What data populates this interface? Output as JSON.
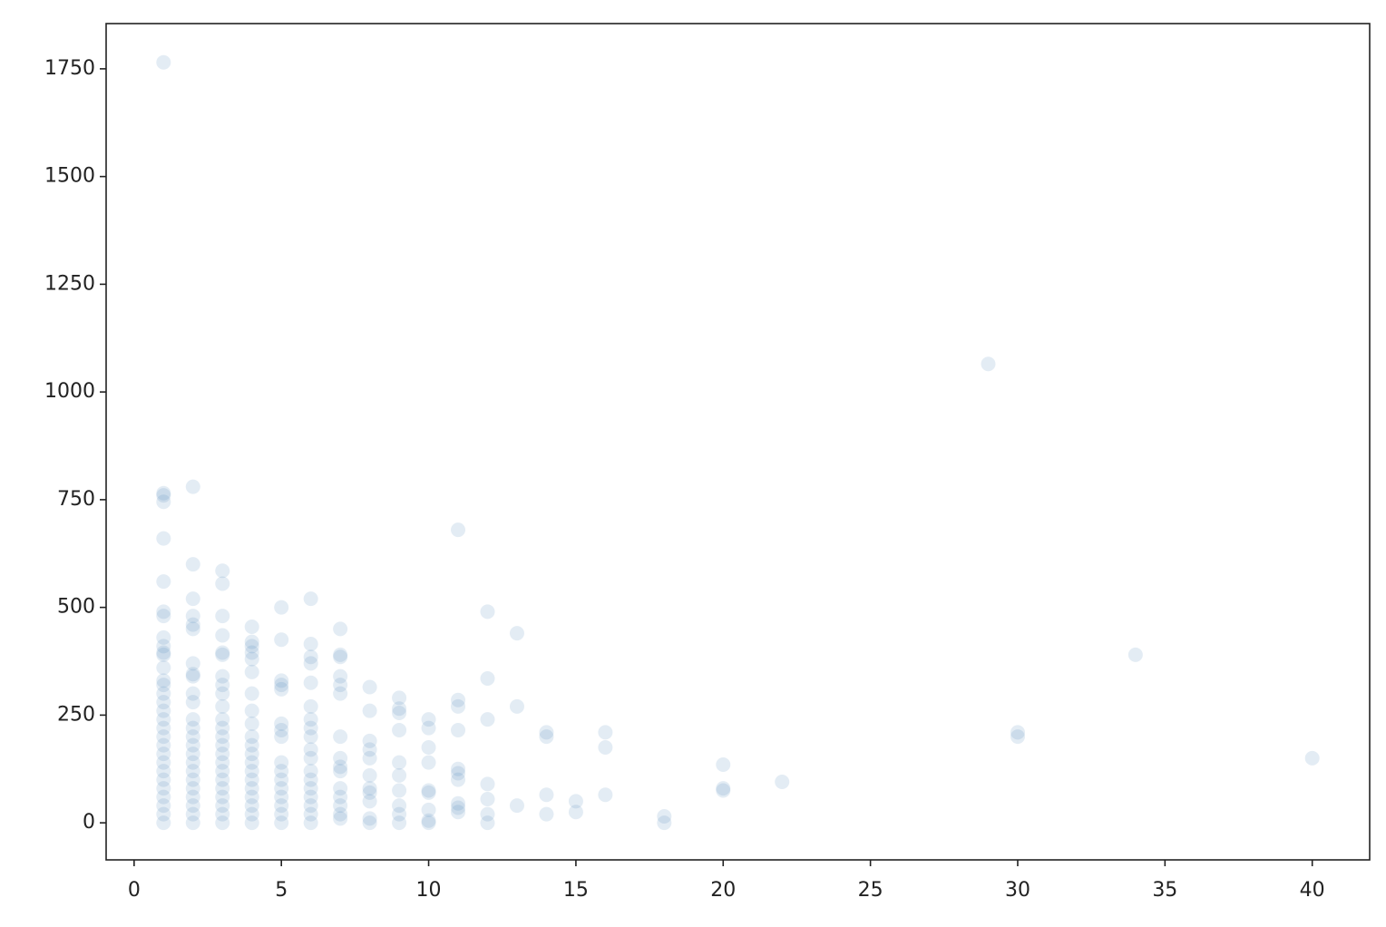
{
  "chart_data": {
    "type": "scatter",
    "color": "#4682b4",
    "alpha": 0.15,
    "grid": false,
    "xlim": [
      -0.95,
      41.95
    ],
    "ylim": [
      -86,
      1855
    ],
    "xticks": [
      0,
      5,
      10,
      15,
      20,
      25,
      30,
      35,
      40
    ],
    "yticks": [
      0,
      250,
      500,
      750,
      1000,
      1250,
      1500,
      1750
    ],
    "x": [
      1,
      1,
      1,
      1,
      1,
      1,
      1,
      1,
      1,
      1,
      1,
      1,
      1,
      1,
      1,
      1,
      1,
      1,
      1,
      1,
      1,
      1,
      1,
      1,
      1,
      1,
      1,
      1,
      1,
      1,
      1,
      2,
      2,
      2,
      2,
      2,
      2,
      2,
      2,
      2,
      2,
      2,
      2,
      2,
      2,
      2,
      2,
      2,
      2,
      2,
      2,
      2,
      2,
      2,
      2,
      3,
      3,
      3,
      3,
      3,
      3,
      3,
      3,
      3,
      3,
      3,
      3,
      3,
      3,
      3,
      3,
      3,
      3,
      3,
      3,
      3,
      3,
      3,
      4,
      4,
      4,
      4,
      4,
      4,
      4,
      4,
      4,
      4,
      4,
      4,
      4,
      4,
      4,
      4,
      4,
      4,
      4,
      4,
      5,
      5,
      5,
      5,
      5,
      5,
      5,
      5,
      5,
      5,
      5,
      5,
      5,
      5,
      5,
      5,
      6,
      6,
      6,
      6,
      6,
      6,
      6,
      6,
      6,
      6,
      6,
      6,
      6,
      6,
      6,
      6,
      6,
      6,
      7,
      7,
      7,
      7,
      7,
      7,
      7,
      7,
      7,
      7,
      7,
      7,
      7,
      7,
      7,
      8,
      8,
      8,
      8,
      8,
      8,
      8,
      8,
      8,
      8,
      8,
      9,
      9,
      9,
      9,
      9,
      9,
      9,
      9,
      9,
      9,
      10,
      10,
      10,
      10,
      10,
      10,
      10,
      10,
      10,
      11,
      11,
      11,
      11,
      11,
      11,
      11,
      11,
      11,
      11,
      12,
      12,
      12,
      12,
      12,
      12,
      12,
      13,
      13,
      13,
      14,
      14,
      14,
      14,
      15,
      15,
      16,
      16,
      16,
      18,
      18,
      20,
      20,
      20,
      22,
      29,
      30,
      30,
      34,
      40
    ],
    "values": [
      0,
      20,
      40,
      60,
      80,
      100,
      120,
      140,
      160,
      180,
      200,
      220,
      240,
      260,
      280,
      300,
      320,
      330,
      360,
      390,
      395,
      410,
      430,
      480,
      490,
      560,
      660,
      745,
      760,
      765,
      1765,
      0,
      20,
      40,
      60,
      80,
      100,
      120,
      140,
      160,
      180,
      200,
      220,
      240,
      280,
      300,
      340,
      345,
      370,
      450,
      460,
      480,
      520,
      600,
      780,
      0,
      20,
      40,
      60,
      80,
      100,
      120,
      140,
      160,
      180,
      200,
      220,
      240,
      270,
      300,
      320,
      340,
      390,
      395,
      435,
      480,
      555,
      585,
      0,
      20,
      40,
      60,
      80,
      100,
      120,
      140,
      160,
      180,
      200,
      230,
      260,
      300,
      350,
      380,
      395,
      410,
      420,
      455,
      0,
      20,
      40,
      60,
      80,
      100,
      120,
      140,
      200,
      215,
      230,
      310,
      320,
      330,
      425,
      500,
      0,
      20,
      40,
      60,
      80,
      100,
      120,
      150,
      170,
      200,
      220,
      240,
      270,
      325,
      370,
      385,
      415,
      520,
      10,
      20,
      40,
      60,
      80,
      120,
      130,
      150,
      200,
      300,
      320,
      340,
      385,
      390,
      450,
      0,
      10,
      50,
      70,
      80,
      110,
      150,
      170,
      190,
      260,
      315,
      0,
      20,
      40,
      75,
      110,
      140,
      215,
      255,
      265,
      290,
      0,
      5,
      30,
      70,
      75,
      140,
      175,
      220,
      240,
      25,
      35,
      45,
      100,
      115,
      125,
      215,
      270,
      285,
      680,
      0,
      20,
      55,
      90,
      240,
      335,
      490,
      40,
      270,
      440,
      20,
      65,
      200,
      210,
      25,
      50,
      65,
      175,
      210,
      0,
      15,
      75,
      80,
      135,
      95,
      1065,
      200,
      210,
      390,
      150
    ]
  }
}
